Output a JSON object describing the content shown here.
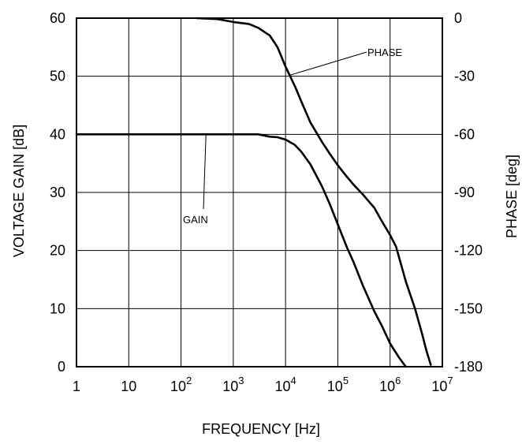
{
  "chart_data": {
    "type": "line",
    "xlabel": "FREQUENCY [Hz]",
    "ylabel": "VOLTAGE GAIN [dB]",
    "y2label": "PHASE [deg]",
    "x_scale": "log",
    "xlim": [
      1,
      10000000
    ],
    "ylim": [
      0,
      60
    ],
    "y2lim": [
      -180,
      0
    ],
    "grid": true,
    "x_ticks": [
      {
        "value": 1,
        "base": "1",
        "exp": ""
      },
      {
        "value": 10,
        "base": "10",
        "exp": ""
      },
      {
        "value": 100,
        "base": "10",
        "exp": "2"
      },
      {
        "value": 1000,
        "base": "10",
        "exp": "3"
      },
      {
        "value": 10000,
        "base": "10",
        "exp": "4"
      },
      {
        "value": 100000,
        "base": "10",
        "exp": "5"
      },
      {
        "value": 1000000,
        "base": "10",
        "exp": "6"
      },
      {
        "value": 10000000,
        "base": "10",
        "exp": "7"
      }
    ],
    "y_ticks": [
      "0",
      "10",
      "20",
      "30",
      "40",
      "50",
      "60"
    ],
    "y2_ticks": [
      "-180",
      "-150",
      "-120",
      "-90",
      "-60",
      "-30",
      "0"
    ],
    "series": [
      {
        "name": "GAIN",
        "axis": "left",
        "x": [
          1,
          100,
          1000,
          3000,
          5000,
          7000,
          10000,
          15000,
          20000,
          30000,
          50000,
          70000,
          100000,
          150000,
          200000,
          300000,
          500000,
          700000,
          1000000,
          1500000,
          2000000
        ],
        "y": [
          40,
          40,
          40,
          40,
          39.6,
          39.5,
          39.1,
          38.2,
          37,
          34.8,
          31,
          28,
          24.5,
          20.5,
          18,
          14,
          9.5,
          7,
          4,
          1.5,
          0
        ]
      },
      {
        "name": "PHASE",
        "axis": "right",
        "x": [
          200,
          500,
          1000,
          2000,
          3000,
          5000,
          7000,
          10000,
          15000,
          20000,
          30000,
          50000,
          70000,
          100000,
          150000,
          200000,
          300000,
          500000,
          700000,
          1000000,
          1300000,
          1500000,
          2000000,
          3000000,
          4000000,
          5000000,
          6000000
        ],
        "y": [
          0,
          -0.5,
          -2,
          -3,
          -5,
          -9,
          -15,
          -25,
          -35,
          -43,
          -54,
          -64,
          -70,
          -76,
          -82,
          -86,
          -91,
          -98,
          -105,
          -112,
          -118,
          -124,
          -136,
          -150,
          -162,
          -172,
          -179
        ]
      }
    ],
    "annotations": [
      {
        "text": "PHASE",
        "series": "PHASE",
        "target_x": 12000
      },
      {
        "text": "GAIN",
        "series": "GAIN",
        "target_x": 300
      }
    ]
  }
}
